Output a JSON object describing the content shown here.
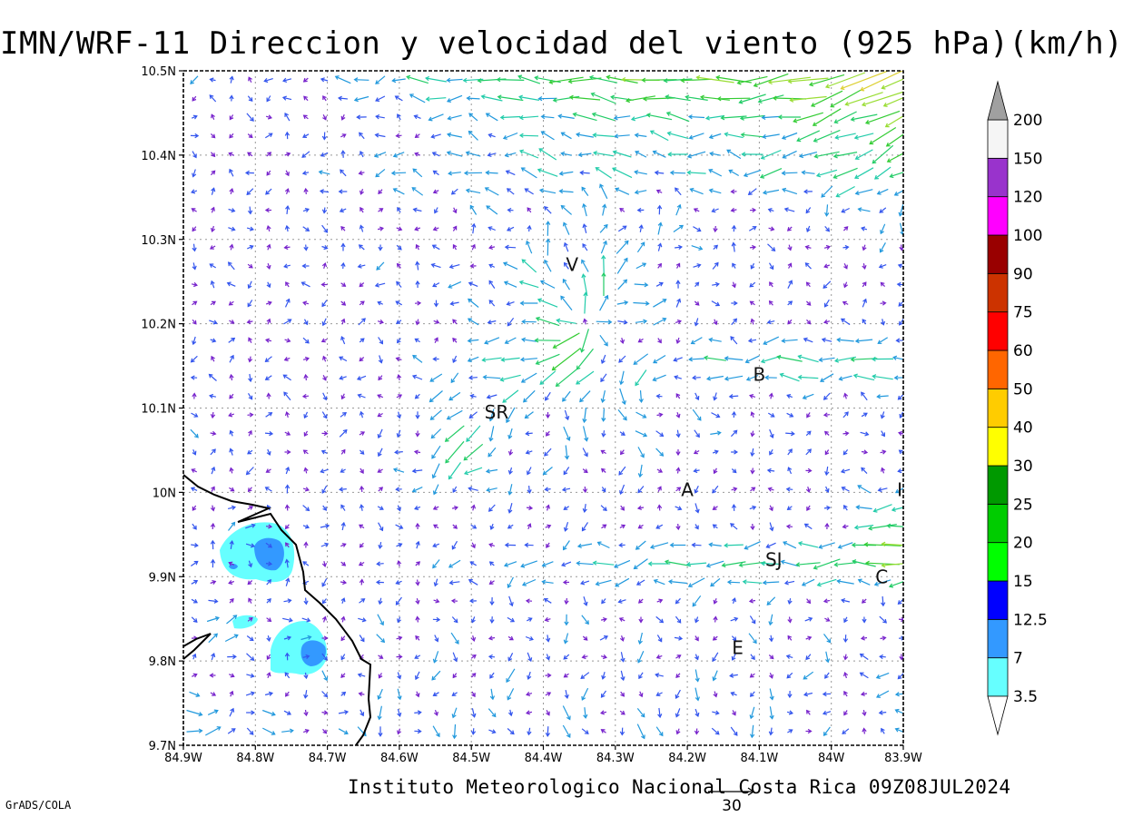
{
  "title": "IMN/WRF-11 Direccion y velocidad del viento (925 hPa)(km/h)",
  "footer": "Instituto Meteorologico Nacional Costa Rica 09Z08JUL2024",
  "credit": "GrADS/COLA",
  "reference_vector_label": "30",
  "map": {
    "lon_range": [
      -84.9,
      -83.9
    ],
    "lat_range": [
      9.7,
      10.5
    ],
    "x_ticks": [
      "84.9W",
      "84.8W",
      "84.7W",
      "84.6W",
      "84.5W",
      "84.4W",
      "84.3W",
      "84.2W",
      "84.1W",
      "84W",
      "83.9W"
    ],
    "y_ticks": [
      "10.5N",
      "10.4N",
      "10.3N",
      "10.2N",
      "10.1N",
      "10N",
      "9.9N",
      "9.8N",
      "9.7N"
    ],
    "grid": true,
    "cities": [
      {
        "label": "V",
        "lon": -84.36,
        "lat": 10.27
      },
      {
        "label": "B",
        "lon": -84.1,
        "lat": 10.14
      },
      {
        "label": "SR",
        "lon": -84.465,
        "lat": 10.095
      },
      {
        "label": "A",
        "lon": -84.2,
        "lat": 10.003
      },
      {
        "label": "SJ",
        "lon": -84.08,
        "lat": 9.92
      },
      {
        "label": "C",
        "lon": -83.93,
        "lat": 9.9
      },
      {
        "label": "E",
        "lon": -84.13,
        "lat": 9.816
      },
      {
        "label": "I",
        "lon": -83.905,
        "lat": 10.003
      }
    ]
  },
  "colorbar": {
    "levels": [
      "3.5",
      "7",
      "12.5",
      "15",
      "20",
      "25",
      "30",
      "40",
      "50",
      "60",
      "75",
      "90",
      "100",
      "120",
      "150",
      "200"
    ],
    "colors": [
      "#66ffff",
      "#3399ff",
      "#0000ff",
      "#00ff00",
      "#00cc00",
      "#009900",
      "#ffff00",
      "#ffcc00",
      "#ff6600",
      "#ff0000",
      "#cc3300",
      "#990000",
      "#ff00ff",
      "#9933cc",
      "#f5f5f5"
    ],
    "under_color": "#ffffff",
    "over_color": "#a0a0a0"
  },
  "shaded_regions": [
    {
      "level": "3.5",
      "color": "#66ffff",
      "area": "coastal patches near 84.8W 9.93N"
    },
    {
      "level": "7",
      "color": "#3399ff",
      "area": "cores near 84.79W 9.93N and 84.74W 9.81N"
    }
  ]
}
